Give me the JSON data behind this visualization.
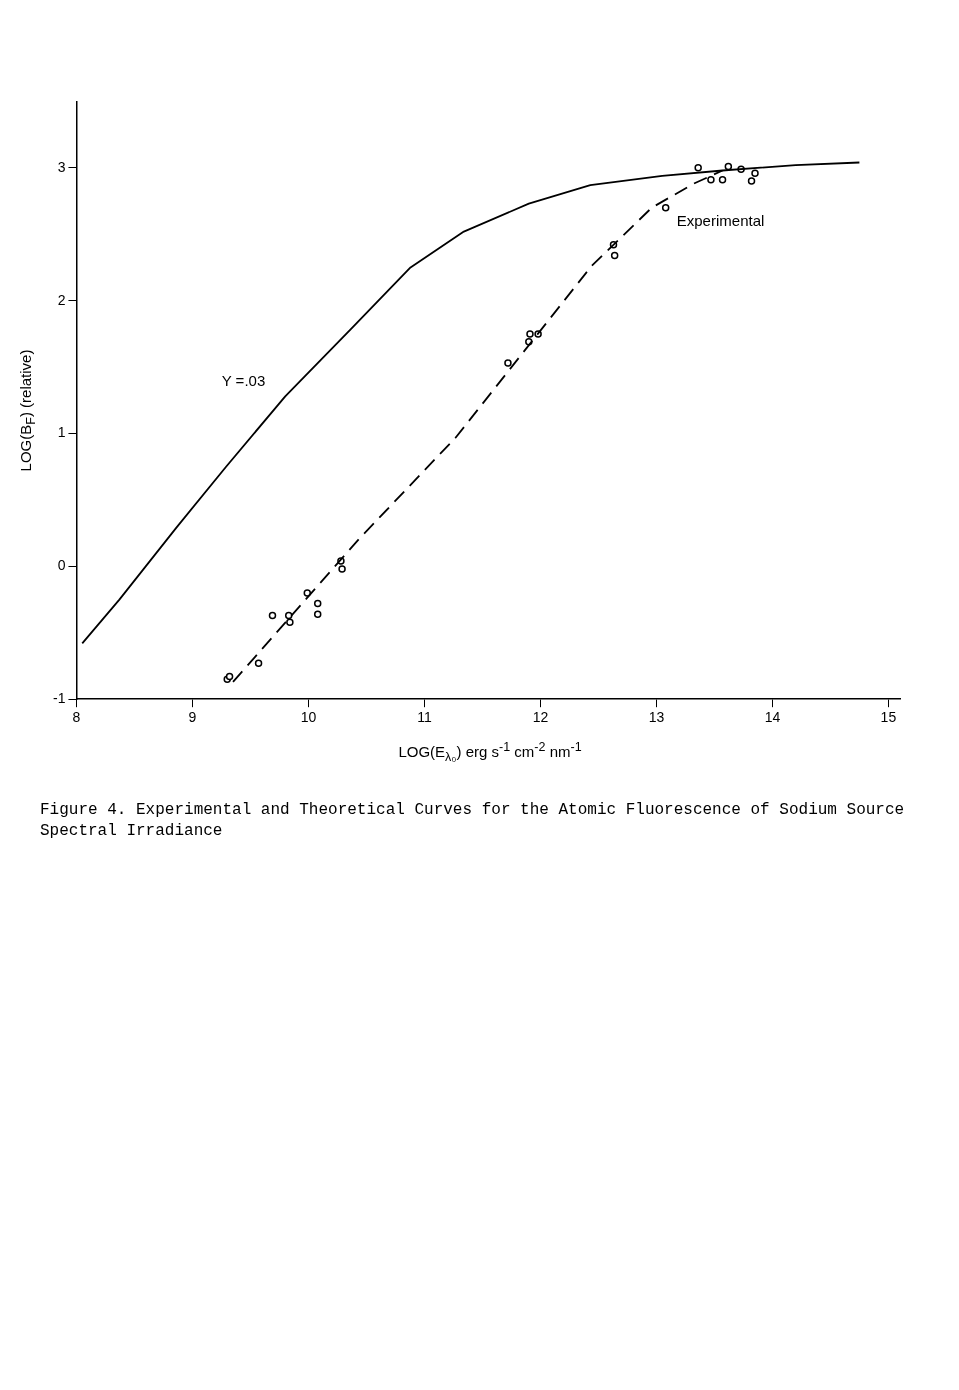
{
  "chart_data": {
    "type": "line",
    "title": "Figure 4.  Experimental and Theoretical Curves for the Atomic Fluorescence of Sodium Source Spectral Irradiance",
    "xlabel": "LOG(E$_{λ₀}$)   erg s$^{-1}$ cm$^{-2}$ nm$^{-1}$",
    "ylabel": "LOG(B$_{F}$) (relative)",
    "xlim": [
      8,
      15.1
    ],
    "xticks": [
      8,
      9,
      10,
      11,
      12,
      13,
      14,
      15
    ],
    "ylim": [
      -1,
      3.5
    ],
    "yticks": [
      -1,
      0,
      1,
      2,
      3
    ],
    "grid": false,
    "legend": false,
    "series": [
      {
        "name": "Y =.03",
        "color": "#000000",
        "line_style": "solid",
        "marker": "none",
        "x": [
          8.05,
          8.37,
          8.86,
          9.29,
          9.8,
          10.37,
          10.88,
          11.34,
          11.9,
          12.43,
          13.05,
          13.57,
          14.2,
          14.75
        ],
        "values": [
          -0.58,
          -0.25,
          0.29,
          0.75,
          1.28,
          1.79,
          2.25,
          2.52,
          2.73,
          2.87,
          2.94,
          2.98,
          3.02,
          3.04
        ]
      },
      {
        "name": "Experimental",
        "color": "#000000",
        "line_style": "dashed",
        "marker": "none",
        "x": [
          9.35,
          10.44,
          11.27,
          12.44,
          12.96,
          13.32,
          13.57
        ],
        "values": [
          -0.87,
          0.21,
          0.97,
          2.26,
          2.7,
          2.88,
          2.98
        ]
      },
      {
        "type": "scatter",
        "color": "#000000",
        "marker": "circle",
        "x": [
          9.3,
          9.32,
          9.57,
          9.69,
          9.83,
          9.84,
          9.99,
          10.08,
          10.08,
          10.28,
          10.29,
          11.72,
          11.9,
          11.91,
          11.98,
          12.63,
          12.64,
          13.08,
          13.36,
          13.47,
          13.57,
          13.62,
          13.73,
          13.82,
          13.85
        ],
        "values": [
          -0.85,
          -0.83,
          -0.73,
          -0.37,
          -0.37,
          -0.42,
          -0.2,
          -0.28,
          -0.36,
          0.04,
          -0.02,
          1.53,
          1.69,
          1.75,
          1.75,
          2.42,
          2.34,
          2.7,
          3.0,
          2.91,
          2.91,
          3.01,
          2.99,
          2.9,
          2.96
        ]
      }
    ]
  }
}
